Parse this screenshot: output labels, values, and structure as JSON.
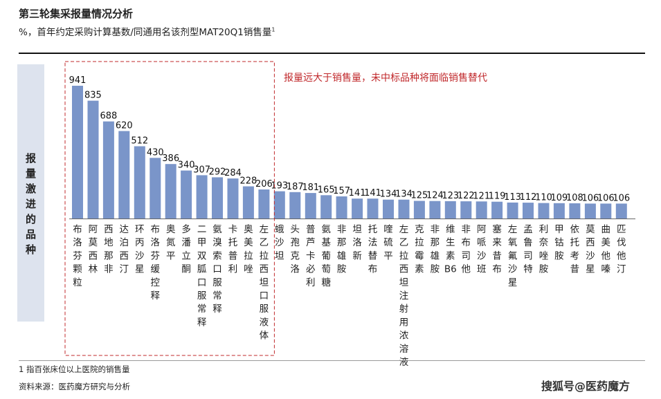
{
  "title": "第三轮集采报量情况分析",
  "subtitle": "%，首年约定采购计算基数/同通用名该剂型MAT20Q1销售量",
  "subtitle_sup": "1",
  "side_label": [
    "报",
    "量",
    "激",
    "进",
    "的",
    "品",
    "种"
  ],
  "callout": "报量远大于销售量，未中标品种将面临销售替代",
  "footnote": "1 指百张床位以上医院的销售量",
  "source": "资料来源：医药魔方研究与分析",
  "watermark": "搜狐号@医药魔方",
  "colors": {
    "bar": "#7a95c9",
    "callout": "#c0282b",
    "side_box": "#dde3ee"
  },
  "chart_data": {
    "type": "bar",
    "title": "第三轮集采报量情况分析",
    "ylabel": "%，首年约定采购计算基数/同通用名该剂型MAT20Q1销售量",
    "xlabel": "",
    "ylim": [
      0,
      1000
    ],
    "grid": false,
    "categories": [
      "布洛芬颗粒",
      "阿莫西林",
      "西地那非",
      "达泊西汀",
      "环丙沙星",
      "布洛芬缓控释",
      "奥氮平",
      "多潘立酮",
      "二甲双胍口服常释",
      "氨溴索口服常释",
      "卡托普利",
      "奥美拉唑",
      "左乙拉西坦口服液体",
      "蛾沙坦",
      "头孢克洛",
      "普芦卡必利",
      "氨基葡萄糖",
      "非那雄胺",
      "坦洛新",
      "托法替布",
      "喹硫平",
      "左乙拉西坦注射用浓溶液",
      "克拉霉素",
      "非那雄胺",
      "维生素B6",
      "非布司他",
      "阿哌沙班",
      "塞来昔布",
      "左氧氟沙星",
      "孟鲁司特",
      "利奈唑胺",
      "甲钴胺",
      "依托考昔",
      "莫西沙星",
      "曲美他嗪",
      "匹伐他汀"
    ],
    "values": [
      941,
      835,
      688,
      620,
      512,
      430,
      386,
      340,
      307,
      292,
      284,
      228,
      206,
      193,
      187,
      181,
      165,
      157,
      141,
      141,
      134,
      134,
      125,
      124,
      123,
      122,
      121,
      119,
      113,
      112,
      110,
      109,
      108,
      106,
      106,
      106
    ],
    "highlight": {
      "from": 0,
      "to": 12,
      "style": "dashed-red-box"
    }
  }
}
